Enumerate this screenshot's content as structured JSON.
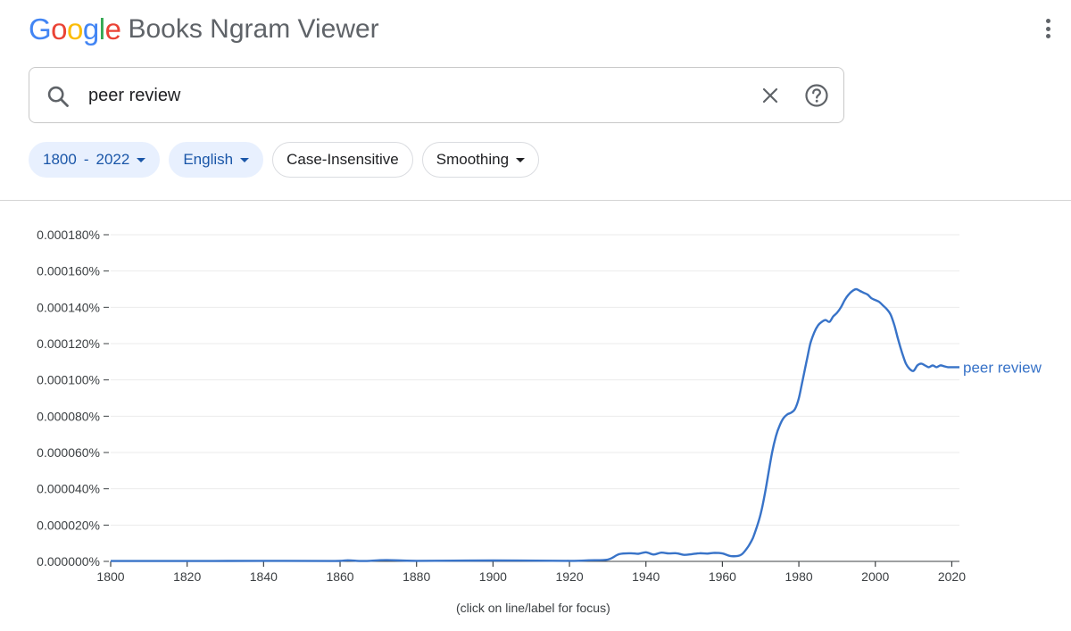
{
  "header": {
    "logo": "Google",
    "product": "Books Ngram Viewer"
  },
  "search": {
    "query": "peer review",
    "icon": "search-icon",
    "clear_icon": "close-icon",
    "help_icon": "help-icon"
  },
  "filters": {
    "year_start": "1800",
    "year_end": "2022",
    "corpus": "English",
    "case": "Case-Insensitive",
    "smoothing": "Smoothing"
  },
  "colors": {
    "line": "#3873c8",
    "chip_active_bg": "#e8f0fe",
    "chip_active_text": "#1a56a8"
  },
  "chart_data": {
    "type": "line",
    "title": "",
    "xlabel": "",
    "ylabel": "",
    "xlim": [
      1800,
      2022
    ],
    "ylim": [
      0,
      0.00018
    ],
    "xticks": [
      "1800",
      "1820",
      "1840",
      "1860",
      "1880",
      "1900",
      "1920",
      "1940",
      "1960",
      "1980",
      "2000",
      "2020"
    ],
    "yticks": [
      "0.000000%",
      "0.000020%",
      "0.000040%",
      "0.000060%",
      "0.000080%",
      "0.000100%",
      "0.000120%",
      "0.000140%",
      "0.000160%",
      "0.000180%"
    ],
    "grid": true,
    "series": [
      {
        "name": "peer review",
        "x": [
          1800,
          1820,
          1840,
          1858,
          1862,
          1866,
          1872,
          1880,
          1900,
          1920,
          1925,
          1930,
          1933,
          1936,
          1938,
          1940,
          1942,
          1944,
          1946,
          1948,
          1950,
          1952,
          1954,
          1956,
          1958,
          1960,
          1962,
          1964,
          1965,
          1966,
          1967,
          1968,
          1969,
          1970,
          1971,
          1972,
          1973,
          1974,
          1975,
          1976,
          1977,
          1978,
          1979,
          1980,
          1981,
          1982,
          1983,
          1984,
          1985,
          1986,
          1987,
          1988,
          1989,
          1990,
          1991,
          1992,
          1993,
          1994,
          1995,
          1996,
          1997,
          1998,
          1999,
          2000,
          2001,
          2002,
          2003,
          2004,
          2005,
          2006,
          2007,
          2008,
          2009,
          2010,
          2011,
          2012,
          2013,
          2014,
          2015,
          2016,
          2017,
          2018,
          2019,
          2020,
          2021,
          2022
        ],
        "values": [
          2e-07,
          2e-07,
          3e-07,
          2e-07,
          6e-07,
          2e-07,
          7e-07,
          3e-07,
          5e-07,
          3e-07,
          6e-07,
          1e-06,
          4e-06,
          4.5e-06,
          4.2e-06,
          5e-06,
          3.8e-06,
          4.8e-06,
          4.4e-06,
          4.5e-06,
          3.6e-06,
          4e-06,
          4.5e-06,
          4.3e-06,
          4.7e-06,
          4.4e-06,
          3e-06,
          3e-06,
          3.8e-06,
          6e-06,
          9e-06,
          1.3e-05,
          1.9e-05,
          2.6e-05,
          3.6e-05,
          4.8e-05,
          6e-05,
          6.9e-05,
          7.5e-05,
          7.9e-05,
          8.1e-05,
          8.2e-05,
          8.4e-05,
          9e-05,
          0.0001,
          0.00011,
          0.00012,
          0.000126,
          0.00013,
          0.000132,
          0.000133,
          0.000132,
          0.000135,
          0.000137,
          0.00014,
          0.000144,
          0.000147,
          0.000149,
          0.00015,
          0.000149,
          0.000148,
          0.000147,
          0.000145,
          0.000144,
          0.000143,
          0.000141,
          0.000139,
          0.000136,
          0.00013,
          0.000122,
          0.000115,
          0.000109,
          0.000106,
          0.000105,
          0.000108,
          0.000109,
          0.000108,
          0.000107,
          0.000108,
          0.000107,
          0.000108,
          0.0001075,
          0.000107,
          0.000107,
          0.000107,
          0.000107
        ]
      }
    ]
  },
  "caption": "(click on line/label for focus)"
}
